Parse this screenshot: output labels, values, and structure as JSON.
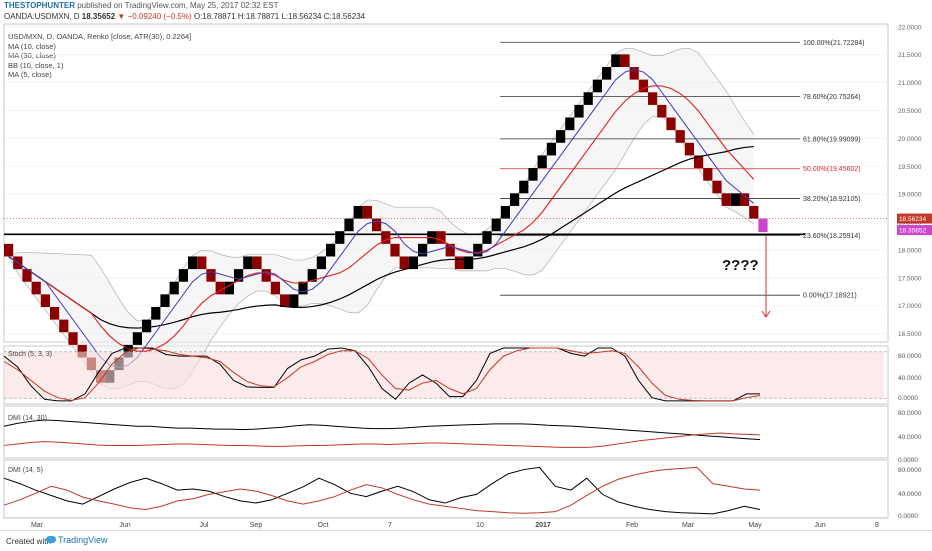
{
  "header": {
    "author": "THESTOPHUNTER",
    "published": "published on TradingView.com, May 25, 2017 02:32 EST",
    "symbol": "OANDA:USDMXN, D",
    "price": "18.35652",
    "change": "−0.09240 (−0.5%)",
    "ohlc": "O:18.78871 H:18.78871 L:18.56234 C:18.56234"
  },
  "legend": [
    "USD/MXN, D, OANDA, Renko [close, ATR(30), 0.2264]",
    "MA (10, close)",
    "MA (30, close)",
    "BB (10, close, 1)",
    "MA (5, close)"
  ],
  "footer": {
    "created": "Created with",
    "brand": "TradingView"
  },
  "colors": {
    "up_brick": "#000000",
    "down_brick": "#8b0000",
    "ma5": "#3b3bb8",
    "ma10": "#e02020",
    "ma30": "#000000",
    "bb": "#b0b0b0",
    "current": "#cc44cc",
    "price_label": "#c0392b"
  },
  "chart_data": [
    {
      "type": "renko",
      "title": "USD/MXN, D, OANDA, Renko [close, ATR(30), 0.2264]",
      "brick_size": 0.2264,
      "bricks": [
        "down",
        "down",
        "down",
        "down",
        "down",
        "down",
        "down",
        "down",
        "down",
        "down",
        "down",
        "up",
        "up",
        "up",
        "up",
        "up",
        "up",
        "up",
        "up",
        "up",
        "up",
        "down",
        "down",
        "down",
        "up",
        "up",
        "up",
        "down",
        "down",
        "down",
        "down",
        "up",
        "up",
        "up",
        "up",
        "up",
        "up",
        "up",
        "up",
        "down",
        "down",
        "down",
        "down",
        "down",
        "up",
        "up",
        "up",
        "down",
        "down",
        "down",
        "up",
        "up",
        "up",
        "up",
        "up",
        "up",
        "up",
        "up",
        "up",
        "up",
        "up",
        "up",
        "up",
        "up",
        "up",
        "up",
        "up",
        "down",
        "down",
        "down",
        "down",
        "down",
        "down",
        "down",
        "down",
        "down",
        "down",
        "down",
        "down",
        "up",
        "down",
        "down"
      ],
      "current_price": 18.35652,
      "last_close": 18.56234,
      "y_ticks": [
        "22.0000",
        "21.5000",
        "21.0000",
        "20.5000",
        "20.0000",
        "19.5000",
        "19.0000",
        "18.5000",
        "18.0000",
        "17.5000",
        "17.0000",
        "16.5000"
      ],
      "ylim": [
        16.35,
        22.05
      ],
      "x_ticks": [
        "Mar",
        "Jun",
        "Jul",
        "Sep",
        "Oct",
        "7",
        "10",
        "2017",
        "Feb",
        "Mar",
        "May",
        "Jun",
        "8"
      ],
      "fibonacci": [
        {
          "label": "100.00%(21.72284)",
          "value": 21.72284
        },
        {
          "label": "78.60%(20.75264)",
          "value": 20.75264
        },
        {
          "label": "61.80%(19.99099)",
          "value": 19.99099
        },
        {
          "label": "50.00%(19.45602)",
          "value": 19.45602
        },
        {
          "label": "38.20%(18.92105)",
          "value": 18.92105
        },
        {
          "label": "23.60%(18.25914)",
          "value": 18.25914
        },
        {
          "label": "0.00%(17.18921)",
          "value": 17.18921
        }
      ],
      "annotation": "????",
      "price_labels": [
        "18.56234",
        "18.35652"
      ],
      "series": [
        {
          "name": "MA (5, close)"
        },
        {
          "name": "MA (10, close)"
        },
        {
          "name": "MA (30, close)"
        },
        {
          "name": "BB (10, close, 1)"
        }
      ]
    },
    {
      "type": "line",
      "title": "Stoch (5, 3, 3)",
      "ylim": [
        0,
        100
      ],
      "y_ticks": [
        "80.0000",
        "40.0000",
        "0.0000"
      ],
      "series": [
        {
          "values": [
            85,
            65,
            30,
            5,
            2,
            2,
            15,
            55,
            90,
            100,
            100,
            100,
            88,
            85,
            85,
            85,
            70,
            40,
            28,
            27,
            27,
            62,
            78,
            85,
            98,
            100,
            95,
            65,
            25,
            5,
            35,
            50,
            35,
            10,
            10,
            40,
            90,
            100,
            100,
            100,
            100,
            100,
            90,
            85,
            100,
            100,
            85,
            40,
            8,
            2,
            2,
            2,
            2,
            2,
            2,
            15,
            15
          ]
        },
        {
          "values": [
            75,
            60,
            40,
            20,
            8,
            3,
            8,
            35,
            70,
            92,
            100,
            98,
            95,
            88,
            85,
            82,
            75,
            55,
            38,
            30,
            28,
            45,
            65,
            75,
            88,
            95,
            95,
            80,
            50,
            25,
            22,
            35,
            40,
            25,
            15,
            25,
            60,
            85,
            95,
            100,
            100,
            100,
            95,
            90,
            92,
            95,
            90,
            65,
            35,
            12,
            5,
            3,
            2,
            2,
            2,
            8,
            12
          ]
        }
      ]
    },
    {
      "type": "line",
      "title": "DMI (14, 30)",
      "ylim": [
        0,
        100
      ],
      "y_ticks": [
        "80.0000",
        "40.0000",
        "0.0000"
      ],
      "series": [
        {
          "values": [
            62,
            68,
            72,
            75,
            74,
            72,
            70,
            68,
            66,
            64,
            62,
            62,
            60,
            58,
            58,
            57,
            56,
            56,
            55,
            56,
            58,
            60,
            63,
            65,
            64,
            62,
            60,
            58,
            57,
            57,
            58,
            60,
            62,
            63,
            64,
            65,
            66,
            67,
            67,
            67,
            66,
            64,
            63,
            62,
            60,
            58,
            56,
            54,
            52,
            50,
            48,
            46,
            44,
            42,
            40,
            38,
            36,
            34
          ]
        },
        {
          "values": [
            22,
            25,
            28,
            30,
            29,
            27,
            25,
            23,
            22,
            22,
            22,
            23,
            24,
            25,
            25,
            24,
            23,
            22,
            22,
            21,
            20,
            20,
            21,
            22,
            22,
            23,
            24,
            25,
            25,
            24,
            25,
            26,
            27,
            27,
            26,
            25,
            24,
            23,
            22,
            21,
            20,
            19,
            18,
            18,
            18,
            20,
            24,
            28,
            32,
            35,
            38,
            41,
            44,
            46,
            48,
            46,
            45,
            44
          ]
        }
      ]
    },
    {
      "type": "line",
      "title": "DMI (14, 5)",
      "ylim": [
        0,
        100
      ],
      "y_ticks": [
        "80.0000",
        "40.0000",
        "0.0000"
      ],
      "series": [
        {
          "values": [
            70,
            60,
            48,
            38,
            28,
            22,
            36,
            50,
            62,
            70,
            60,
            48,
            50,
            46,
            36,
            28,
            24,
            30,
            42,
            54,
            70,
            58,
            42,
            36,
            46,
            55,
            45,
            30,
            24,
            34,
            40,
            60,
            78,
            86,
            90,
            55,
            48,
            70,
            40,
            26,
            18,
            12,
            8,
            6,
            5,
            4,
            10,
            18,
            12
          ]
        },
        {
          "values": [
            20,
            30,
            42,
            55,
            48,
            35,
            28,
            22,
            15,
            12,
            18,
            28,
            32,
            40,
            45,
            50,
            46,
            38,
            28,
            22,
            28,
            36,
            48,
            58,
            52,
            40,
            30,
            22,
            18,
            14,
            10,
            8,
            6,
            5,
            6,
            8,
            20,
            38,
            55,
            68,
            76,
            82,
            86,
            88,
            90,
            60,
            55,
            50,
            48
          ]
        }
      ]
    }
  ]
}
